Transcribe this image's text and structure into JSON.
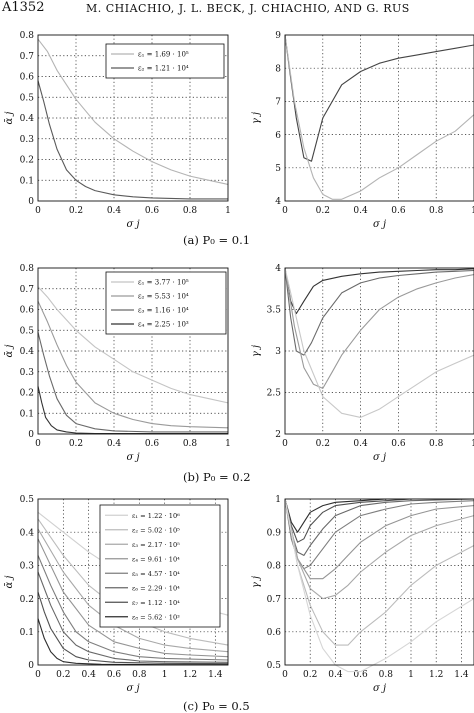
{
  "header": {
    "page_number": "A1352",
    "authors": "M. CHIACHIO, J. L. BECK, J. CHIACHIO, AND G. RUS"
  },
  "captions": [
    "(a)  P₀ = 0.1",
    "(b)  P₀ = 0.2",
    "(c)  P₀ = 0.5"
  ],
  "chart_data": [
    {
      "type": "line",
      "xlabel": "σ j",
      "ylabel": "ᾱ j",
      "xticks": [
        "0",
        "0.2",
        "0.4",
        "0.6",
        "0.8",
        "1"
      ],
      "yticks": [
        "0",
        "0.1",
        "0.2",
        "0.3",
        "0.4",
        "0.5",
        "0.6",
        "0.7",
        "0.8"
      ],
      "xlim": [
        0,
        1
      ],
      "ylim": [
        0,
        0.8
      ],
      "grid": true,
      "legend_position": "top-right",
      "series": [
        {
          "name": "ε₁ = 1.69 · 10⁵",
          "color": "#b4b4b4",
          "x": [
            0,
            0.05,
            0.1,
            0.15,
            0.2,
            0.3,
            0.4,
            0.5,
            0.6,
            0.7,
            0.8,
            0.9,
            1
          ],
          "values": [
            0.78,
            0.72,
            0.63,
            0.56,
            0.49,
            0.38,
            0.3,
            0.24,
            0.19,
            0.15,
            0.12,
            0.1,
            0.08
          ]
        },
        {
          "name": "ε₂ = 1.21 · 10⁴",
          "color": "#5a5a5a",
          "x": [
            0,
            0.03,
            0.06,
            0.1,
            0.15,
            0.2,
            0.25,
            0.3,
            0.4,
            0.5,
            0.6,
            0.8,
            1
          ],
          "values": [
            0.58,
            0.48,
            0.37,
            0.25,
            0.15,
            0.1,
            0.07,
            0.05,
            0.03,
            0.02,
            0.015,
            0.01,
            0.01
          ]
        }
      ]
    },
    {
      "type": "line",
      "xlabel": "σ j",
      "ylabel": "γ j",
      "xticks": [
        "0",
        "0.2",
        "0.4",
        "0.6",
        "0.8",
        "1"
      ],
      "yticks": [
        "4",
        "5",
        "6",
        "7",
        "8",
        "9"
      ],
      "xlim": [
        0,
        1
      ],
      "ylim": [
        4,
        9
      ],
      "grid": true,
      "series": [
        {
          "color": "#444444",
          "x": [
            0,
            0.03,
            0.06,
            0.1,
            0.14,
            0.2,
            0.3,
            0.4,
            0.5,
            0.6,
            0.7,
            0.8,
            0.9,
            1
          ],
          "values": [
            9,
            7.7,
            6.5,
            5.3,
            5.2,
            6.5,
            7.5,
            7.9,
            8.15,
            8.3,
            8.4,
            8.5,
            8.6,
            8.7
          ]
        },
        {
          "color": "#b4b4b4",
          "x": [
            0,
            0.05,
            0.1,
            0.15,
            0.2,
            0.25,
            0.3,
            0.4,
            0.5,
            0.6,
            0.7,
            0.8,
            0.9,
            1
          ],
          "values": [
            9,
            7,
            5.6,
            4.7,
            4.2,
            4.05,
            4.05,
            4.3,
            4.7,
            5,
            5.4,
            5.8,
            6.1,
            6.6
          ]
        }
      ]
    },
    {
      "type": "line",
      "xlabel": "σ j",
      "ylabel": "ᾱ j",
      "xticks": [
        "0",
        "0.2",
        "0.4",
        "0.6",
        "0.8",
        "1"
      ],
      "yticks": [
        "0",
        "0.1",
        "0.2",
        "0.3",
        "0.4",
        "0.5",
        "0.6",
        "0.7",
        "0.8"
      ],
      "xlim": [
        0,
        1
      ],
      "ylim": [
        0,
        0.8
      ],
      "grid": true,
      "legend_position": "top-right",
      "series": [
        {
          "name": "ε₁ = 3.77 · 10⁵",
          "color": "#c4c4c4",
          "x": [
            0,
            0.05,
            0.1,
            0.15,
            0.2,
            0.3,
            0.4,
            0.5,
            0.6,
            0.7,
            0.8,
            0.9,
            1
          ],
          "values": [
            0.71,
            0.66,
            0.6,
            0.55,
            0.5,
            0.42,
            0.36,
            0.3,
            0.26,
            0.22,
            0.19,
            0.17,
            0.15
          ]
        },
        {
          "name": "ε₂ = 5.53 · 10⁴",
          "color": "#9a9a9a",
          "x": [
            0,
            0.05,
            0.1,
            0.15,
            0.2,
            0.3,
            0.4,
            0.5,
            0.6,
            0.7,
            0.8,
            1
          ],
          "values": [
            0.64,
            0.54,
            0.43,
            0.33,
            0.25,
            0.15,
            0.1,
            0.07,
            0.05,
            0.04,
            0.035,
            0.03
          ]
        },
        {
          "name": "ε₃ = 1.16 · 10⁴",
          "color": "#6a6a6a",
          "x": [
            0,
            0.03,
            0.06,
            0.1,
            0.15,
            0.2,
            0.3,
            0.4,
            0.6,
            0.8,
            1
          ],
          "values": [
            0.49,
            0.38,
            0.28,
            0.17,
            0.09,
            0.05,
            0.025,
            0.015,
            0.01,
            0.01,
            0.01
          ]
        },
        {
          "name": "ε₄ = 2.25 · 10³",
          "color": "#333333",
          "x": [
            0,
            0.02,
            0.04,
            0.07,
            0.1,
            0.15,
            0.2,
            0.3,
            0.5,
            1
          ],
          "values": [
            0.23,
            0.15,
            0.08,
            0.04,
            0.02,
            0.01,
            0.005,
            0.002,
            0.002,
            0.002
          ]
        }
      ]
    },
    {
      "type": "line",
      "xlabel": "σ j",
      "ylabel": "γ j",
      "xticks": [
        "0",
        "0.2",
        "0.4",
        "0.6",
        "0.8",
        "1"
      ],
      "yticks": [
        "2",
        "2.5",
        "3",
        "3.5",
        "4"
      ],
      "xlim": [
        0,
        1
      ],
      "ylim": [
        2,
        4
      ],
      "grid": true,
      "series": [
        {
          "color": "#333333",
          "x": [
            0,
            0.03,
            0.06,
            0.1,
            0.15,
            0.2,
            0.3,
            0.4,
            0.5,
            0.6,
            0.7,
            0.8,
            0.9,
            1
          ],
          "values": [
            4,
            3.6,
            3.45,
            3.6,
            3.78,
            3.85,
            3.9,
            3.93,
            3.95,
            3.96,
            3.97,
            3.98,
            3.98,
            3.99
          ]
        },
        {
          "color": "#6a6a6a",
          "x": [
            0,
            0.03,
            0.06,
            0.1,
            0.14,
            0.2,
            0.3,
            0.4,
            0.5,
            0.6,
            0.7,
            0.8,
            0.9,
            1
          ],
          "values": [
            4,
            3.4,
            3,
            2.95,
            3.1,
            3.4,
            3.7,
            3.82,
            3.88,
            3.91,
            3.93,
            3.95,
            3.96,
            3.97
          ]
        },
        {
          "color": "#9a9a9a",
          "x": [
            0,
            0.05,
            0.1,
            0.15,
            0.2,
            0.25,
            0.3,
            0.4,
            0.5,
            0.6,
            0.7,
            0.8,
            0.9,
            1
          ],
          "values": [
            4,
            3.3,
            2.8,
            2.6,
            2.55,
            2.75,
            2.95,
            3.25,
            3.5,
            3.65,
            3.75,
            3.82,
            3.88,
            3.92
          ]
        },
        {
          "color": "#c8c8c8",
          "x": [
            0,
            0.1,
            0.2,
            0.3,
            0.4,
            0.5,
            0.6,
            0.7,
            0.8,
            0.9,
            1
          ],
          "values": [
            4,
            3,
            2.45,
            2.25,
            2.2,
            2.3,
            2.45,
            2.6,
            2.75,
            2.85,
            2.95
          ]
        }
      ]
    },
    {
      "type": "line",
      "xlabel": "σ j",
      "ylabel": "ᾱ j",
      "xticks": [
        "0",
        "0.2",
        "0.4",
        "0.6",
        "0.8",
        "1",
        "1.2",
        "1.4"
      ],
      "yticks": [
        "0",
        "0.1",
        "0.2",
        "0.3",
        "0.4",
        "0.5"
      ],
      "xlim": [
        0,
        1.5
      ],
      "ylim": [
        0,
        0.5
      ],
      "grid": true,
      "legend_position": "top-right",
      "series": [
        {
          "name": "ε₁ = 1.22 · 10⁶",
          "color": "#d0d0d0",
          "x": [
            0,
            0.2,
            0.4,
            0.6,
            0.8,
            1,
            1.2,
            1.5
          ],
          "values": [
            0.46,
            0.4,
            0.34,
            0.29,
            0.25,
            0.21,
            0.18,
            0.15
          ]
        },
        {
          "name": "ε₂ = 5.02 · 10⁵",
          "color": "#bcbcbc",
          "x": [
            0,
            0.2,
            0.4,
            0.6,
            0.8,
            1,
            1.2,
            1.5
          ],
          "values": [
            0.44,
            0.33,
            0.24,
            0.18,
            0.13,
            0.1,
            0.08,
            0.06
          ]
        },
        {
          "name": "ε₃ = 2.17 · 10⁵",
          "color": "#a8a8a8",
          "x": [
            0,
            0.2,
            0.4,
            0.6,
            0.8,
            1,
            1.2,
            1.5
          ],
          "values": [
            0.41,
            0.28,
            0.18,
            0.12,
            0.08,
            0.06,
            0.05,
            0.04
          ]
        },
        {
          "name": "ε₄ = 9.61 · 10⁴",
          "color": "#949494",
          "x": [
            0,
            0.2,
            0.4,
            0.6,
            0.8,
            1,
            1.2,
            1.5
          ],
          "values": [
            0.38,
            0.22,
            0.12,
            0.07,
            0.05,
            0.035,
            0.03,
            0.025
          ]
        },
        {
          "name": "ε₅ = 4.57 · 10⁴",
          "color": "#7e7e7e",
          "x": [
            0,
            0.1,
            0.2,
            0.3,
            0.4,
            0.6,
            0.8,
            1,
            1.5
          ],
          "values": [
            0.33,
            0.24,
            0.16,
            0.1,
            0.07,
            0.04,
            0.025,
            0.02,
            0.015
          ]
        },
        {
          "name": "ε₆ = 2.29 · 10⁴",
          "color": "#686868",
          "x": [
            0,
            0.1,
            0.2,
            0.3,
            0.4,
            0.6,
            0.8,
            1,
            1.5
          ],
          "values": [
            0.28,
            0.18,
            0.1,
            0.06,
            0.04,
            0.02,
            0.012,
            0.01,
            0.008
          ]
        },
        {
          "name": "ε₇ = 1.12 · 10⁴",
          "color": "#505050",
          "x": [
            0,
            0.05,
            0.1,
            0.2,
            0.3,
            0.4,
            0.6,
            1,
            1.5
          ],
          "values": [
            0.22,
            0.16,
            0.11,
            0.05,
            0.025,
            0.015,
            0.008,
            0.005,
            0.004
          ]
        },
        {
          "name": "ε₈ = 5.62 · 10³",
          "color": "#2e2e2e",
          "x": [
            0,
            0.05,
            0.1,
            0.15,
            0.2,
            0.3,
            0.5,
            1,
            1.5
          ],
          "values": [
            0.14,
            0.08,
            0.04,
            0.02,
            0.01,
            0.005,
            0.002,
            0.001,
            0.001
          ]
        }
      ]
    },
    {
      "type": "line",
      "xlabel": "σ j",
      "ylabel": "γ j",
      "xticks": [
        "0",
        "0.2",
        "0.4",
        "0.6",
        "0.8",
        "1",
        "1.2",
        "1.4"
      ],
      "yticks": [
        "0.5",
        "0.6",
        "0.7",
        "0.8",
        "0.9",
        "1"
      ],
      "xlim": [
        0,
        1.5
      ],
      "ylim": [
        0.5,
        1
      ],
      "grid": true,
      "series": [
        {
          "color": "#2e2e2e",
          "x": [
            0,
            0.05,
            0.1,
            0.15,
            0.2,
            0.3,
            0.4,
            0.6,
            0.8,
            1,
            1.5
          ],
          "values": [
            1,
            0.93,
            0.9,
            0.93,
            0.96,
            0.98,
            0.99,
            0.995,
            1,
            1,
            1
          ]
        },
        {
          "color": "#505050",
          "x": [
            0,
            0.05,
            0.1,
            0.15,
            0.2,
            0.3,
            0.4,
            0.6,
            0.8,
            1,
            1.5
          ],
          "values": [
            1,
            0.92,
            0.87,
            0.88,
            0.92,
            0.96,
            0.98,
            0.99,
            0.995,
            1,
            1
          ]
        },
        {
          "color": "#686868",
          "x": [
            0,
            0.05,
            0.1,
            0.15,
            0.2,
            0.3,
            0.4,
            0.6,
            0.8,
            1,
            1.5
          ],
          "values": [
            1,
            0.9,
            0.84,
            0.83,
            0.86,
            0.91,
            0.95,
            0.98,
            0.99,
            0.995,
            1
          ]
        },
        {
          "color": "#7e7e7e",
          "x": [
            0,
            0.05,
            0.1,
            0.15,
            0.2,
            0.3,
            0.4,
            0.6,
            0.8,
            1,
            1.2,
            1.5
          ],
          "values": [
            1,
            0.88,
            0.82,
            0.79,
            0.8,
            0.85,
            0.9,
            0.95,
            0.97,
            0.985,
            0.99,
            0.995
          ]
        },
        {
          "color": "#949494",
          "x": [
            0,
            0.1,
            0.2,
            0.3,
            0.4,
            0.5,
            0.6,
            0.8,
            1,
            1.2,
            1.5
          ],
          "values": [
            1,
            0.82,
            0.76,
            0.76,
            0.79,
            0.83,
            0.87,
            0.92,
            0.95,
            0.97,
            0.98
          ]
        },
        {
          "color": "#a8a8a8",
          "x": [
            0,
            0.1,
            0.2,
            0.3,
            0.4,
            0.5,
            0.6,
            0.8,
            1,
            1.2,
            1.5
          ],
          "values": [
            1,
            0.82,
            0.73,
            0.7,
            0.71,
            0.74,
            0.78,
            0.84,
            0.89,
            0.92,
            0.95
          ]
        },
        {
          "color": "#bcbcbc",
          "x": [
            0,
            0.1,
            0.2,
            0.3,
            0.4,
            0.5,
            0.6,
            0.8,
            1,
            1.2,
            1.5
          ],
          "values": [
            1,
            0.8,
            0.68,
            0.6,
            0.56,
            0.56,
            0.6,
            0.66,
            0.74,
            0.8,
            0.86
          ]
        },
        {
          "color": "#d6d6d6",
          "x": [
            0,
            0.1,
            0.2,
            0.3,
            0.4,
            0.5,
            0.6,
            0.8,
            1,
            1.2,
            1.5
          ],
          "values": [
            1,
            0.8,
            0.65,
            0.55,
            0.5,
            0.48,
            0.48,
            0.52,
            0.57,
            0.63,
            0.7
          ]
        }
      ]
    }
  ]
}
